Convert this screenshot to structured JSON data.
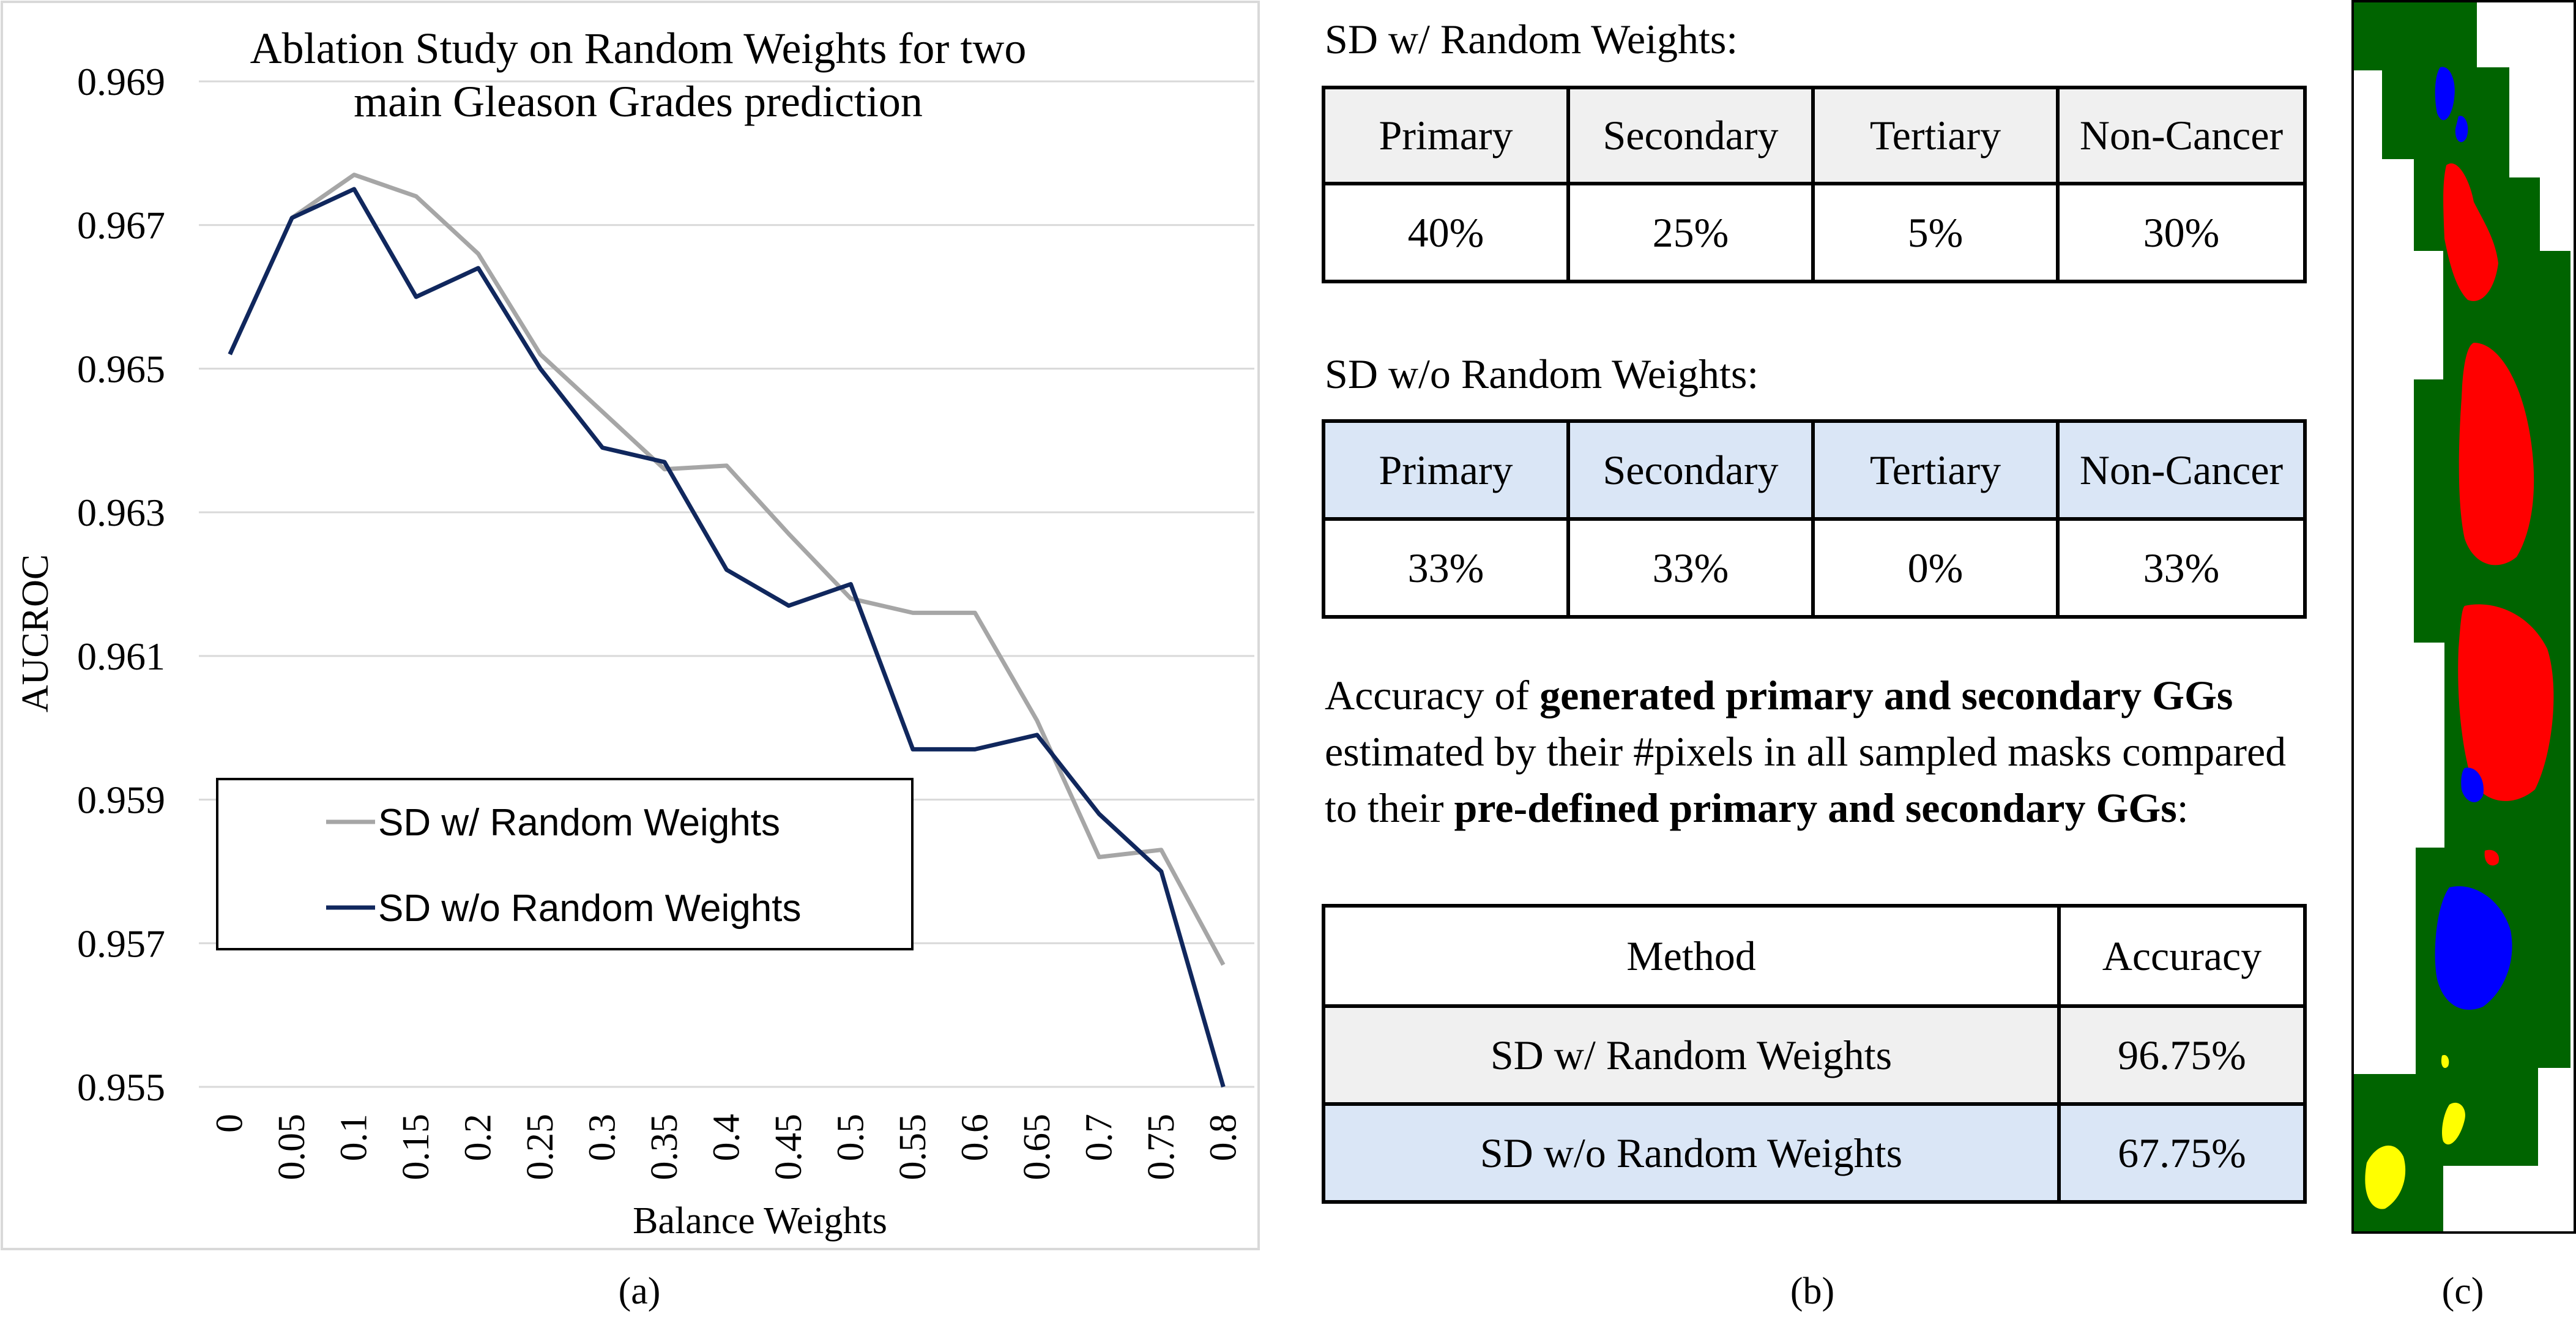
{
  "panel_a": {
    "caption": "(a)",
    "chart_data": {
      "type": "line",
      "title": "Ablation Study on Random Weights for two main Gleason Grades prediction",
      "title_lines": [
        "Ablation Study on Random Weights for two",
        "main Gleason Grades prediction"
      ],
      "xlabel": "Balance Weights",
      "ylabel": "AUCROC",
      "categories": [
        "0",
        "0.05",
        "0.1",
        "0.15",
        "0.2",
        "0.25",
        "0.3",
        "0.35",
        "0.4",
        "0.45",
        "0.5",
        "0.55",
        "0.6",
        "0.65",
        "0.7",
        "0.75",
        "0.8"
      ],
      "yticks": [
        "0.955",
        "0.957",
        "0.959",
        "0.961",
        "0.963",
        "0.965",
        "0.967",
        "0.969"
      ],
      "ylim": [
        0.955,
        0.969
      ],
      "grid": true,
      "legend": "center-left",
      "series": [
        {
          "name": "SD w/ Random Weights",
          "color": "#a6a6a6",
          "values": [
            null,
            0.9671,
            0.9677,
            0.9674,
            0.9666,
            0.9652,
            0.9644,
            0.9636,
            0.96365,
            0.9627,
            0.9618,
            0.9616,
            0.9616,
            0.9601,
            0.9582,
            0.9583,
            0.9567
          ]
        },
        {
          "name": "SD w/o Random Weights",
          "color": "#10275d",
          "values": [
            0.9652,
            0.9671,
            0.9675,
            0.966,
            0.9664,
            0.965,
            0.9639,
            0.9637,
            0.9622,
            0.9617,
            0.962,
            0.9597,
            0.9597,
            0.9599,
            0.9588,
            0.958,
            0.955
          ]
        }
      ]
    }
  },
  "panel_b": {
    "caption": "(b)",
    "table1": {
      "title": "SD w/ Random Weights:",
      "headers": [
        "Primary",
        "Secondary",
        "Tertiary",
        "Non-Cancer"
      ],
      "values": [
        "40%",
        "25%",
        "5%",
        "30%"
      ]
    },
    "table2": {
      "title": "SD w/o Random Weights:",
      "headers": [
        "Primary",
        "Secondary",
        "Tertiary",
        "Non-Cancer"
      ],
      "values": [
        "33%",
        "33%",
        "0%",
        "33%"
      ]
    },
    "accuracy_text": {
      "t1": "Accuracy of ",
      "b1": "generated primary and secondary GGs",
      "t2": " estimated by their #pixels in all sampled masks compared to their ",
      "b2": "pre-defined primary and secondary GGs",
      "t3": ":"
    },
    "table3": {
      "headers": [
        "Method",
        "Accuracy"
      ],
      "rows": [
        [
          "SD w/ Random Weights",
          "96.75%"
        ],
        [
          "SD w/o Random Weights",
          "67.75%"
        ]
      ]
    }
  },
  "panel_c": {
    "caption": "(c)",
    "colors": {
      "background": "#006400",
      "primary": "#ff0000",
      "secondary": "#0000ff",
      "tertiary": "#ffff00"
    }
  }
}
